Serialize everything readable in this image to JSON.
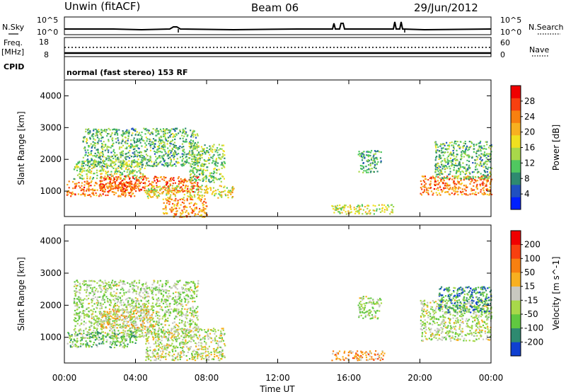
{
  "header": {
    "station": "Unwin (fitACF)",
    "beam": "Beam 06",
    "date": "29/Jun/2012"
  },
  "status_panel": {
    "nsky_label": "N.Sky",
    "nsearch_label": "N.Search",
    "freq_label": "Freq.",
    "freq_unit": "[MHz]",
    "nave_label": "Nave",
    "cpid_label": "CPID",
    "mode_text": "normal (fast stereo) 153 RF",
    "noise_ticks_left": [
      "10^5",
      "10^0"
    ],
    "noise_ticks_right": [
      "10^5",
      "10^0"
    ],
    "freq_ticks": [
      "18",
      "8"
    ],
    "nave_ticks": [
      "60",
      "0"
    ]
  },
  "time_axis": {
    "label": "Time UT",
    "ticks": [
      "00:00",
      "04:00",
      "08:00",
      "12:00",
      "16:00",
      "20:00",
      "00:00"
    ]
  },
  "chart_data": [
    {
      "type": "heatmap",
      "parameter": "power",
      "ylabel": "Slant Range [km]",
      "xlabel": "Time UT",
      "xlim": [
        0,
        24
      ],
      "ylim": [
        200,
        4500
      ],
      "y_ticks": [
        "1000",
        "2000",
        "3000",
        "4000"
      ],
      "colorbar": {
        "label": "Power [dB]",
        "ticks": [
          "28",
          "24",
          "20",
          "16",
          "12",
          "8",
          "4"
        ],
        "colors": [
          "#0020ff",
          "#2050c0",
          "#2e8a70",
          "#50c860",
          "#a8d84a",
          "#f0e020",
          "#f8b020",
          "#f88010",
          "#f84010",
          "#f00000"
        ]
      },
      "regions": [
        {
          "t0": 0.1,
          "t1": 4.0,
          "r0": 850,
          "r1": 1350,
          "level": 0.75
        },
        {
          "t0": 0.5,
          "t1": 4.5,
          "r0": 1400,
          "r1": 2000,
          "level": 0.45
        },
        {
          "t0": 1.0,
          "t1": 7.5,
          "r0": 1800,
          "r1": 3000,
          "level": 0.35
        },
        {
          "t0": 2.0,
          "t1": 7.5,
          "r0": 1000,
          "r1": 1500,
          "level": 0.8
        },
        {
          "t0": 4.5,
          "t1": 9.5,
          "r0": 800,
          "r1": 1200,
          "level": 0.55
        },
        {
          "t0": 5.5,
          "t1": 8.0,
          "r0": 200,
          "r1": 800,
          "level": 0.7
        },
        {
          "t0": 7.0,
          "t1": 9.0,
          "r0": 1300,
          "r1": 2500,
          "level": 0.4
        },
        {
          "t0": 15.0,
          "t1": 18.5,
          "r0": 300,
          "r1": 600,
          "level": 0.5
        },
        {
          "t0": 16.5,
          "t1": 17.8,
          "r0": 1600,
          "r1": 2300,
          "level": 0.3
        },
        {
          "t0": 20.0,
          "t1": 24.0,
          "r0": 900,
          "r1": 1500,
          "level": 0.75
        },
        {
          "t0": 20.8,
          "t1": 24.0,
          "r0": 1400,
          "r1": 2600,
          "level": 0.35
        }
      ]
    },
    {
      "type": "heatmap",
      "parameter": "velocity",
      "ylabel": "Slant Range [km]",
      "xlabel": "Time UT",
      "xlim": [
        0,
        24
      ],
      "ylim": [
        200,
        4500
      ],
      "y_ticks": [
        "1000",
        "2000",
        "3000",
        "4000"
      ],
      "colorbar": {
        "label": "Velocity [m s^-1]",
        "ticks": [
          "200",
          "100",
          "50",
          "15",
          "-15",
          "-50",
          "-100",
          "-200"
        ],
        "colors": [
          "#1040d0",
          "#2e8a70",
          "#60c840",
          "#a8d84a",
          "#c8c8c0",
          "#f8b020",
          "#f88010",
          "#f84010",
          "#f00000"
        ]
      },
      "regions": [
        {
          "t0": 0.5,
          "t1": 7.5,
          "r0": 1000,
          "r1": 2800,
          "level": 0.4
        },
        {
          "t0": 2.0,
          "t1": 5.0,
          "r0": 1300,
          "r1": 1900,
          "level": 0.55
        },
        {
          "t0": 0.1,
          "t1": 4.0,
          "r0": 700,
          "r1": 1200,
          "level": 0.3
        },
        {
          "t0": 4.5,
          "t1": 9.0,
          "r0": 300,
          "r1": 1300,
          "level": 0.45
        },
        {
          "t0": 15.0,
          "t1": 18.0,
          "r0": 300,
          "r1": 600,
          "level": 0.65
        },
        {
          "t0": 16.5,
          "t1": 17.8,
          "r0": 1600,
          "r1": 2300,
          "level": 0.4
        },
        {
          "t0": 20.0,
          "t1": 24.0,
          "r0": 900,
          "r1": 2200,
          "level": 0.42
        },
        {
          "t0": 21.0,
          "t1": 24.0,
          "r0": 1800,
          "r1": 2600,
          "level": 0.2
        }
      ]
    }
  ]
}
